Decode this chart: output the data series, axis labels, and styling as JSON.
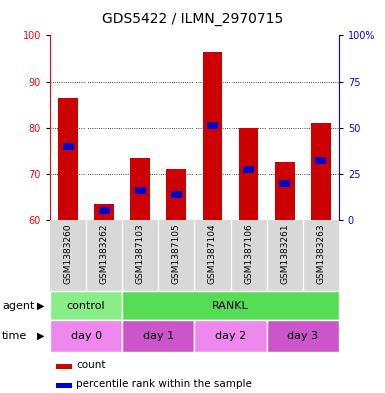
{
  "title": "GDS5422 / ILMN_2970715",
  "samples": [
    "GSM1383260",
    "GSM1383262",
    "GSM1387103",
    "GSM1387105",
    "GSM1387104",
    "GSM1387106",
    "GSM1383261",
    "GSM1383263"
  ],
  "bar_tops": [
    86.5,
    63.5,
    73.5,
    71.0,
    96.5,
    80.0,
    72.5,
    81.0
  ],
  "bar_bottoms": [
    60,
    60,
    60,
    60,
    60,
    60,
    60,
    60
  ],
  "blue_positions": [
    76.0,
    62.0,
    66.5,
    65.5,
    80.5,
    71.0,
    68.0,
    73.0
  ],
  "ylim": [
    60,
    100
  ],
  "yticks_left": [
    60,
    70,
    80,
    90,
    100
  ],
  "yticks_right_vals": [
    "0",
    "25",
    "50",
    "75",
    "100%"
  ],
  "yticks_right_pos": [
    60,
    70,
    80,
    90,
    100
  ],
  "bar_color": "#cc0000",
  "blue_color": "#0000cc",
  "plot_bg": "#ffffff",
  "sample_bg": "#d8d8d8",
  "agent_groups": [
    {
      "label": "control",
      "start": 0,
      "end": 2,
      "color": "#88ee88"
    },
    {
      "label": "RANKL",
      "start": 2,
      "end": 8,
      "color": "#55dd55"
    }
  ],
  "time_groups": [
    {
      "label": "day 0",
      "start": 0,
      "end": 2,
      "color": "#ee88ee"
    },
    {
      "label": "day 1",
      "start": 2,
      "end": 4,
      "color": "#cc55cc"
    },
    {
      "label": "day 2",
      "start": 4,
      "end": 6,
      "color": "#ee88ee"
    },
    {
      "label": "day 3",
      "start": 6,
      "end": 8,
      "color": "#cc55cc"
    }
  ],
  "legend_count_color": "#cc0000",
  "legend_blue_color": "#0000cc",
  "title_fontsize": 10,
  "tick_fontsize": 7,
  "sample_fontsize": 6.5,
  "row_fontsize": 8,
  "legend_fontsize": 7.5
}
